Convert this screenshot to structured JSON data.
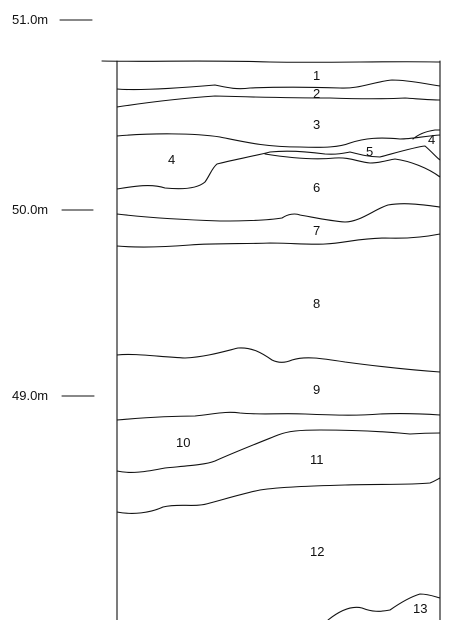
{
  "elevation_markers": [
    {
      "label": "51.0m"
    },
    {
      "label": "50.0m"
    },
    {
      "label": "49.0m"
    }
  ],
  "layers": [
    {
      "label": "1"
    },
    {
      "label": "2"
    },
    {
      "label": "3"
    },
    {
      "label": "4"
    },
    {
      "label": "5"
    },
    {
      "label": "4"
    },
    {
      "label": "6"
    },
    {
      "label": "7"
    },
    {
      "label": "8"
    },
    {
      "label": "9"
    },
    {
      "label": "10"
    },
    {
      "label": "11"
    },
    {
      "label": "12"
    },
    {
      "label": "13"
    }
  ]
}
